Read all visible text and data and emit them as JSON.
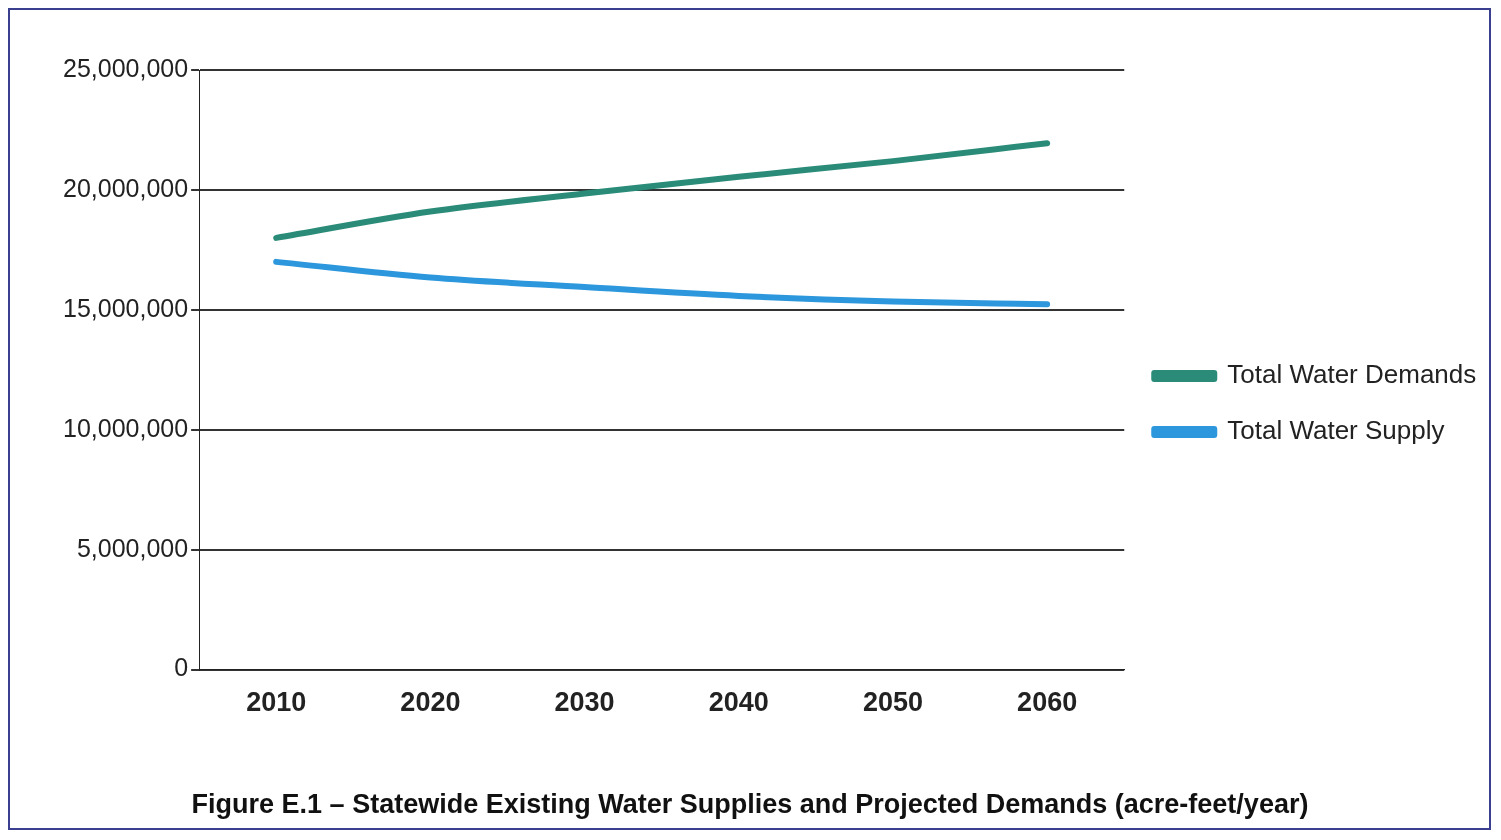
{
  "chart_data": {
    "type": "line",
    "title": "Figure E.1 – Statewide Existing Water Supplies and Projected Demands (acre-feet/year)",
    "categories": [
      "2010",
      "2020",
      "2030",
      "2040",
      "2050",
      "2060"
    ],
    "series": [
      {
        "name": "Total Water Demands",
        "color": "#2a8c78",
        "values": [
          18000000,
          19100000,
          19850000,
          20550000,
          21200000,
          21950000
        ]
      },
      {
        "name": "Total Water Supply",
        "color": "#2c97dc",
        "values": [
          17000000,
          16350000,
          15950000,
          15580000,
          15350000,
          15230000
        ]
      }
    ],
    "ylim": [
      0,
      25000000
    ],
    "yticks": [
      0,
      {
        "value": 5000000,
        "label": "5,000,000"
      },
      {
        "value": 10000000,
        "label": "10,000,000"
      },
      {
        "value": 15000000,
        "label": "15,000,000"
      },
      {
        "value": 20000000,
        "label": "20,000,000"
      },
      {
        "value": 25000000,
        "label": "25,000,000"
      }
    ],
    "grid": "y",
    "legend": "right",
    "marker": "none",
    "line_style": "solid"
  }
}
